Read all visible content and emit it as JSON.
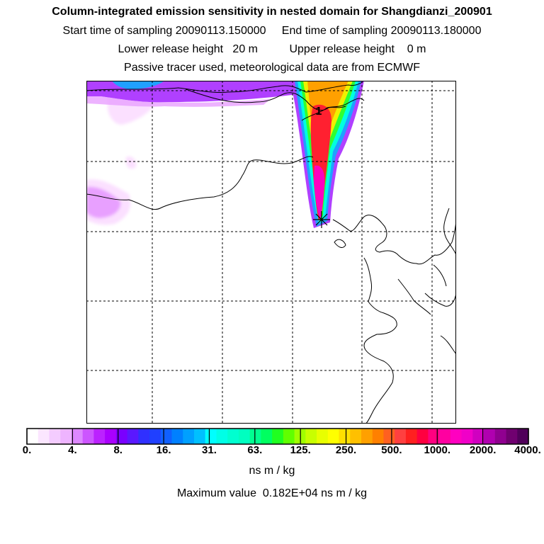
{
  "header": {
    "title": "Column-integrated emission sensitivity in nested domain for Shangdianzi_200901",
    "start_label": "Start time of sampling",
    "start_value": "20090113.150000",
    "end_label": "End time of sampling",
    "end_value": "20090113.180000",
    "lower_label": "Lower release height",
    "lower_value": "20 m",
    "upper_label": "Upper release height",
    "upper_value": "0 m",
    "tracer_note": "Passive tracer used, meteorological data are from ECMWF"
  },
  "map": {
    "release_marker_label": "1",
    "colors": {
      "magenta": "#ff00c0",
      "red": "#ff2030",
      "orange": "#ffa000",
      "yellow": "#f0f000",
      "green": "#30ff30",
      "cyan": "#00ffe0",
      "blue": "#20a0ff",
      "violet": "#b040ff",
      "lavender": "#e8a0ff",
      "pink": "#fbe0ff"
    }
  },
  "colorbar": {
    "tick_labels": [
      "0.",
      "4.",
      "8.",
      "16.",
      "31.",
      "63.",
      "125.",
      "250.",
      "500.",
      "1000.",
      "2000.",
      "4000."
    ],
    "colors": [
      "#ffffff",
      "#fbe6ff",
      "#f4ccff",
      "#eeb4ff",
      "#dd88ff",
      "#cc55ff",
      "#bb22ff",
      "#aa00ff",
      "#7a00ff",
      "#5a18ff",
      "#3030ff",
      "#2040ff",
      "#1060ff",
      "#0080ff",
      "#00a0ff",
      "#00c0ff",
      "#00ffff",
      "#00ffe6",
      "#00ffd0",
      "#00ffc0",
      "#00ff90",
      "#00ff60",
      "#20ff20",
      "#60ff00",
      "#a0ff00",
      "#c8ff00",
      "#e8ff00",
      "#ffff00",
      "#ffe000",
      "#ffc000",
      "#ffa000",
      "#ff8000",
      "#ff6020",
      "#ff4040",
      "#ff2020",
      "#ff0040",
      "#ff0080",
      "#ff00a0",
      "#ff00c0",
      "#f000c8",
      "#d000c0",
      "#b000b0",
      "#900090",
      "#700070",
      "#50005a"
    ],
    "units": "ns m / kg",
    "max_label": "Maximum value",
    "max_value": "0.182E+04 ns m / kg"
  }
}
